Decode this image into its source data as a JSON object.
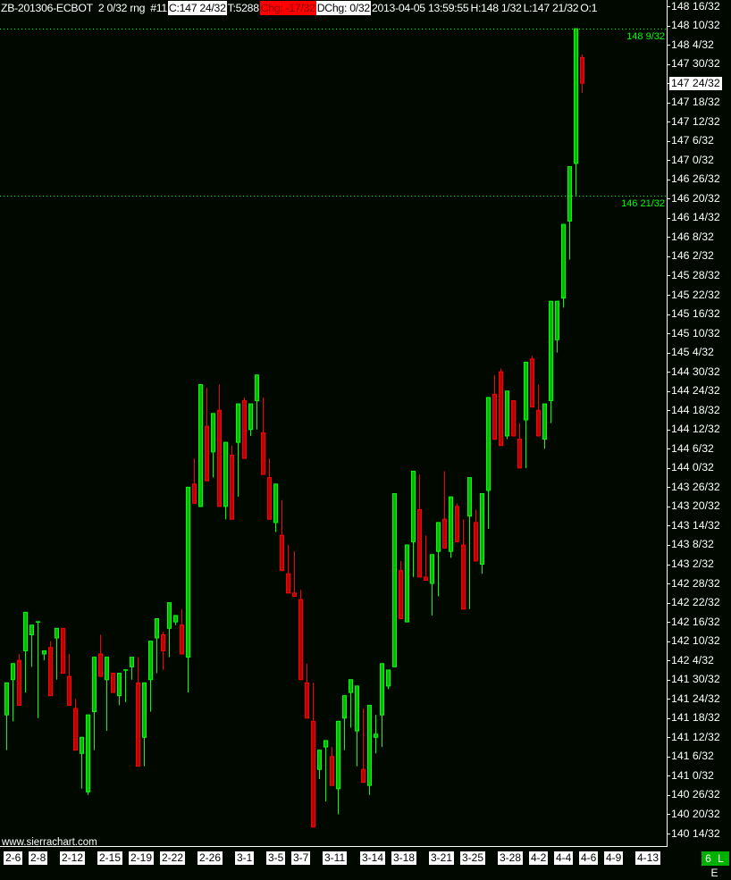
{
  "header": {
    "symbol": "ZB-201306-ECBOT",
    "bar_range": "2 0/32 rng",
    "bar_number": "#11",
    "close": "C:147 24/32",
    "trades": "T:5288",
    "change": "Chg: -17/32",
    "daily_change": "DChg: 0/32",
    "datetime": "2013-04-05 13:59:55",
    "high": "H:148 1/32",
    "low": "L:147 21/32",
    "open": "O:1"
  },
  "watermark": "www.sierrachart.com",
  "status_badge": "6 L E",
  "colors": {
    "background": "#000800",
    "up_candle": "#00ff00",
    "down_candle": "#ff0000",
    "change_negative_bg": "#ff0000",
    "reference_line": "#00ff00",
    "status_badge": "#00b000"
  },
  "chart_data": {
    "type": "candlestick",
    "title": "",
    "price_format": "32nds",
    "ylim": [
      "140 14/32",
      "148 16/32"
    ],
    "y_ticks": [
      "148 16/32",
      "148 10/32",
      "148 4/32",
      "147 30/32",
      "147 24/32",
      "147 18/32",
      "147 12/32",
      "147 6/32",
      "147 0/32",
      "146 26/32",
      "146 20/32",
      "146 14/32",
      "146 8/32",
      "146 2/32",
      "145 28/32",
      "145 22/32",
      "145 16/32",
      "145 10/32",
      "145 4/32",
      "144 30/32",
      "144 24/32",
      "144 18/32",
      "144 12/32",
      "144 6/32",
      "144 0/32",
      "143 26/32",
      "143 20/32",
      "143 14/32",
      "143 8/32",
      "143 2/32",
      "142 28/32",
      "142 22/32",
      "142 16/32",
      "142 10/32",
      "142 4/32",
      "141 30/32",
      "141 24/32",
      "141 18/32",
      "141 12/32",
      "141 6/32",
      "141 0/32",
      "140 26/32",
      "140 20/32",
      "140 14/32"
    ],
    "current_price": "147 24/32",
    "reference_lines": [
      {
        "price": "148 9/32",
        "label": "148 9/32"
      },
      {
        "price": "146 21/32",
        "label": "146 21/32"
      }
    ],
    "x_labels": [
      {
        "label": "2-6",
        "bar": 0
      },
      {
        "label": "2-8",
        "bar": 4
      },
      {
        "label": "2-12",
        "bar": 9
      },
      {
        "label": "2-15",
        "bar": 15
      },
      {
        "label": "2-19",
        "bar": 20
      },
      {
        "label": "2-22",
        "bar": 25
      },
      {
        "label": "2-26",
        "bar": 31
      },
      {
        "label": "3-1",
        "bar": 37
      },
      {
        "label": "3-5",
        "bar": 42
      },
      {
        "label": "3-7",
        "bar": 46
      },
      {
        "label": "3-11",
        "bar": 51
      },
      {
        "label": "3-14",
        "bar": 57
      },
      {
        "label": "3-18",
        "bar": 62
      },
      {
        "label": "3-21",
        "bar": 68
      },
      {
        "label": "3-25",
        "bar": 73
      },
      {
        "label": "3-28",
        "bar": 79
      },
      {
        "label": "4-2",
        "bar": 84
      },
      {
        "label": "4-4",
        "bar": 88
      },
      {
        "label": "4-6",
        "bar": 92
      },
      {
        "label": "4-9",
        "bar": 96
      },
      {
        "label": "4-13",
        "bar": 101
      }
    ],
    "bar_fields": [
      "open",
      "high",
      "low",
      "close"
    ],
    "bars": [
      [
        "141 19/32",
        "141 29/32",
        "141 8/32",
        "141 29/32"
      ],
      [
        "141 30/32",
        "142 3/32",
        "141 17/32",
        "142 3/32"
      ],
      [
        "142 4/32",
        "142 6/32",
        "141 22/32",
        "141 22/32"
      ],
      [
        "142 7/32",
        "142 19/32",
        "141 26/32",
        "142 19/32"
      ],
      [
        "142 12/32",
        "142 15/32",
        "142 2/32",
        "142 15/32"
      ],
      [
        "142 16/32",
        "142 16/32",
        "141 18/32",
        "142 16/32"
      ],
      [
        "142 6/32",
        "142 7/32",
        "142 4/32",
        "142 7/32"
      ],
      [
        "142 8/32",
        "142 10/32",
        "141 25/32",
        "141 25/32"
      ],
      [
        "142 11/32",
        "142 14/32",
        "141 30/32",
        "142 14/32"
      ],
      [
        "142 14/32",
        "142 14/32",
        "142 0/32",
        "142 0/32"
      ],
      [
        "141 31/32",
        "142 6/32",
        "141 22/32",
        "141 22/32"
      ],
      [
        "141 21/32",
        "141 24/32",
        "141 8/32",
        "141 8/32"
      ],
      [
        "141 7/32",
        "141 12/32",
        "140 28/32",
        "141 12/32"
      ],
      [
        "140 27/32",
        "141 19/32",
        "140 26/32",
        "141 19/32"
      ],
      [
        "141 20/32",
        "142 5/32",
        "141 8/32",
        "142 5/32"
      ],
      [
        "142 6/32",
        "142 12/32",
        "141 31/32",
        "141 31/32"
      ],
      [
        "141 30/32",
        "142 5/32",
        "141 14/32",
        "142 5/32"
      ],
      [
        "142 0/32",
        "142 0/32",
        "141 26/32",
        "141 26/32"
      ],
      [
        "141 25/32",
        "142 0/32",
        "141 22/32",
        "142 0/32"
      ],
      [
        "142 1/32",
        "142 1/32",
        "141 23/32",
        "142 1/32"
      ],
      [
        "142 2/32",
        "142 5/32",
        "141 30/32",
        "142 5/32"
      ],
      [
        "141 29/32",
        "142 5/32",
        "141 3/32",
        "141 3/32"
      ],
      [
        "141 12/32",
        "141 29/32",
        "141 3/32",
        "141 29/32"
      ],
      [
        "141 30/32",
        "142 10/32",
        "141 20/32",
        "142 10/32"
      ],
      [
        "142 11/32",
        "142 17/32",
        "142 0/32",
        "142 17/32"
      ],
      [
        "142 12/32",
        "142 13/32",
        "142 1/32",
        "142 7/32"
      ],
      [
        "142 14/32",
        "142 22/32",
        "142 5/32",
        "142 22/32"
      ],
      [
        "142 16/32",
        "142 18/32",
        "142 15/32",
        "142 18/32"
      ],
      [
        "142 15/32",
        "142 20/32",
        "142 6/32",
        "142 6/32"
      ],
      [
        "142 5/32",
        "143 26/32",
        "141 26/32",
        "143 26/32"
      ],
      [
        "143 27/32",
        "144 3/32",
        "143 21/32",
        "143 21/32"
      ],
      [
        "143 20/32",
        "144 26/32",
        "143 20/32",
        "144 26/32"
      ],
      [
        "144 13/32",
        "144 25/32",
        "143 28/32",
        "143 28/32"
      ],
      [
        "144 5/32",
        "144 17/32",
        "143 29/32",
        "144 17/32"
      ],
      [
        "144 18/32",
        "144 26/32",
        "143 20/32",
        "143 20/32"
      ],
      [
        "143 20/32",
        "144 8/32",
        "143 16/32",
        "144 8/32"
      ],
      [
        "144 4/32",
        "144 7/32",
        "143 16/32",
        "143 16/32"
      ],
      [
        "144 8/32",
        "144 20/32",
        "143 23/32",
        "144 20/32"
      ],
      [
        "144 21/32",
        "144 22/32",
        "144 3/32",
        "144 3/32"
      ],
      [
        "144 12/32",
        "144 20/32",
        "144 10/32",
        "144 20/32"
      ],
      [
        "144 21/32",
        "144 29/32",
        "144 12/32",
        "144 29/32"
      ],
      [
        "144 11/32",
        "144 22/32",
        "143 30/32",
        "143 30/32"
      ],
      [
        "143 29/32",
        "144 3/32",
        "143 16/32",
        "143 16/32"
      ],
      [
        "143 15/32",
        "143 27/32",
        "143 12/32",
        "143 27/32"
      ],
      [
        "143 11/32",
        "143 22/32",
        "143 0/32",
        "143 0/32"
      ],
      [
        "142 31/32",
        "143 8/32",
        "142 25/32",
        "142 25/32"
      ],
      [
        "142 25/32",
        "143 6/32",
        "142 24/32",
        "142 24/32"
      ],
      [
        "142 23/32",
        "142 26/32",
        "141 30/32",
        "141 30/32"
      ],
      [
        "141 29/32",
        "142 3/32",
        "141 18/32",
        "141 18/32"
      ],
      [
        "141 17/32",
        "141 29/32",
        "140 16/32",
        "140 16/32"
      ],
      [
        "141 2/32",
        "141 8/32",
        "140 31/32",
        "141 8/32"
      ],
      [
        "141 9/32",
        "141 11/32",
        "140 24/32",
        "141 11/32"
      ],
      [
        "141 6/32",
        "141 9/32",
        "140 29/32",
        "140 29/32"
      ],
      [
        "140 28/32",
        "141 17/32",
        "140 20/32",
        "141 17/32"
      ],
      [
        "141 18/32",
        "141 25/32",
        "141 8/32",
        "141 25/32"
      ],
      [
        "141 26/32",
        "141 30/32",
        "141 15/32",
        "141 30/32"
      ],
      [
        "141 14/32",
        "141 28/32",
        "141 3/32",
        "141 28/32"
      ],
      [
        "141 2/32",
        "141 21/32",
        "140 30/32",
        "140 30/32"
      ],
      [
        "140 29/32",
        "141 22/32",
        "140 26/32",
        "141 22/32"
      ],
      [
        "141 12/32",
        "141 19/32",
        "141 7/32",
        "141 13/32"
      ],
      [
        "141 19/32",
        "142 3/32",
        "141 9/32",
        "142 3/32"
      ],
      [
        "141 28/32",
        "142 1/32",
        "141 27/32",
        "142 1/32"
      ],
      [
        "142 2/32",
        "143 24/32",
        "142 2/32",
        "143 24/32"
      ],
      [
        "143 0/32",
        "143 3/32",
        "142 17/32",
        "142 17/32"
      ],
      [
        "142 16/32",
        "143 8/32",
        "142 16/32",
        "143 8/32"
      ],
      [
        "143 9/32",
        "143 31/32",
        "142 30/32",
        "143 31/32"
      ],
      [
        "143 19/32",
        "143 30/32",
        "142 30/32",
        "142 30/32"
      ],
      [
        "142 30/32",
        "143 11/32",
        "142 29/32",
        "142 29/32"
      ],
      [
        "142 28/32",
        "143 5/32",
        "142 18/32",
        "143 5/32"
      ],
      [
        "143 6/32",
        "143 15/32",
        "142 24/32",
        "143 15/32"
      ],
      [
        "143 16/32",
        "143 31/32",
        "143 7/32",
        "143 7/32"
      ],
      [
        "143 6/32",
        "143 23/32",
        "143 4/32",
        "143 23/32"
      ],
      [
        "143 20/32",
        "143 21/32",
        "143 9/32",
        "143 9/32"
      ],
      [
        "143 8/32",
        "143 16/32",
        "142 20/32",
        "142 20/32"
      ],
      [
        "143 17/32",
        "143 29/32",
        "142 20/32",
        "143 29/32"
      ],
      [
        "143 15/32",
        "143 19/32",
        "143 3/32",
        "143 3/32"
      ],
      [
        "143 2/32",
        "143 24/32",
        "142 31/32",
        "143 24/32"
      ],
      [
        "143 25/32",
        "144 22/32",
        "143 13/32",
        "144 22/32"
      ],
      [
        "144 23/32",
        "144 29/32",
        "144 9/32",
        "144 9/32"
      ],
      [
        "144 30/32",
        "144 31/32",
        "144 7/32",
        "144 7/32"
      ],
      [
        "144 10/32",
        "144 24/32",
        "144 9/32",
        "144 24/32"
      ],
      [
        "144 21/32",
        "144 21/32",
        "144 10/32",
        "144 10/32"
      ],
      [
        "144 9/32",
        "144 14/32",
        "144 0/32",
        "144 0/32"
      ],
      [
        "144 15/32",
        "145 1/32",
        "144 0/32",
        "145 1/32"
      ],
      [
        "145 2/32",
        "145 3/32",
        "144 19/32",
        "144 19/32"
      ],
      [
        "144 18/32",
        "144 26/32",
        "144 10/32",
        "144 10/32"
      ],
      [
        "144 9/32",
        "144 20/32",
        "144 6/32",
        "144 20/32"
      ],
      [
        "144 21/32",
        "145 20/32",
        "144 14/32",
        "145 20/32"
      ],
      [
        "145 8/32",
        "145 20/32",
        "145 4/32",
        "145 20/32"
      ],
      [
        "145 21/32",
        "146 12/32",
        "145 18/32",
        "146 12/32"
      ],
      [
        "146 13/32",
        "146 30/32",
        "146 1/32",
        "146 30/32"
      ],
      [
        "146 31/32",
        "148 9/32",
        "146 21/32",
        "148 9/32"
      ],
      [
        "148 0/32",
        "148 1/32",
        "147 21/32",
        "147 24/32"
      ]
    ]
  }
}
